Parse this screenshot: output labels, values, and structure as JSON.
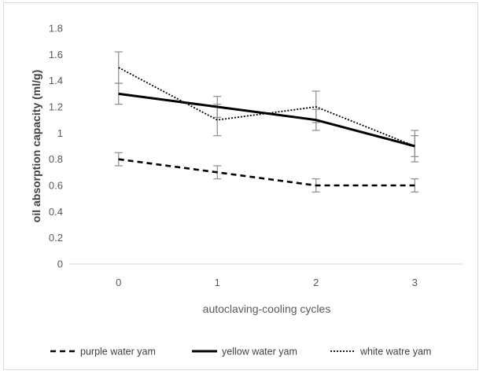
{
  "chart_data": {
    "type": "line",
    "title": "",
    "xlabel": "autoclaving-cooling cycles",
    "ylabel": "oil absorption capacity (ml/g)",
    "categories": [
      "0",
      "1",
      "2",
      "3"
    ],
    "ylim": [
      0,
      1.8
    ],
    "yticks": [
      0,
      0.2,
      0.4,
      0.6,
      0.8,
      1,
      1.2,
      1.4,
      1.6,
      1.8
    ],
    "ytick_labels": [
      "0",
      "0.2",
      "0.4",
      "0.6",
      "0.8",
      "1",
      "1.2",
      "1.4",
      "1.6",
      "1.8"
    ],
    "grid": false,
    "legend_position": "bottom",
    "series": [
      {
        "name": "purple water yam",
        "style": "dashed",
        "color": "#000000",
        "values": [
          0.8,
          0.7,
          0.6,
          0.6
        ],
        "errors": [
          0.05,
          0.05,
          0.05,
          0.05
        ]
      },
      {
        "name": "yellow water yam",
        "style": "solid",
        "color": "#000000",
        "values": [
          1.3,
          1.2,
          1.1,
          0.9
        ],
        "errors": [
          0.08,
          0.08,
          0.08,
          0.08
        ]
      },
      {
        "name": "white watre yam",
        "style": "dotted",
        "color": "#000000",
        "values": [
          1.5,
          1.1,
          1.2,
          0.9
        ],
        "errors": [
          0.12,
          0.12,
          0.12,
          0.12
        ]
      }
    ]
  }
}
